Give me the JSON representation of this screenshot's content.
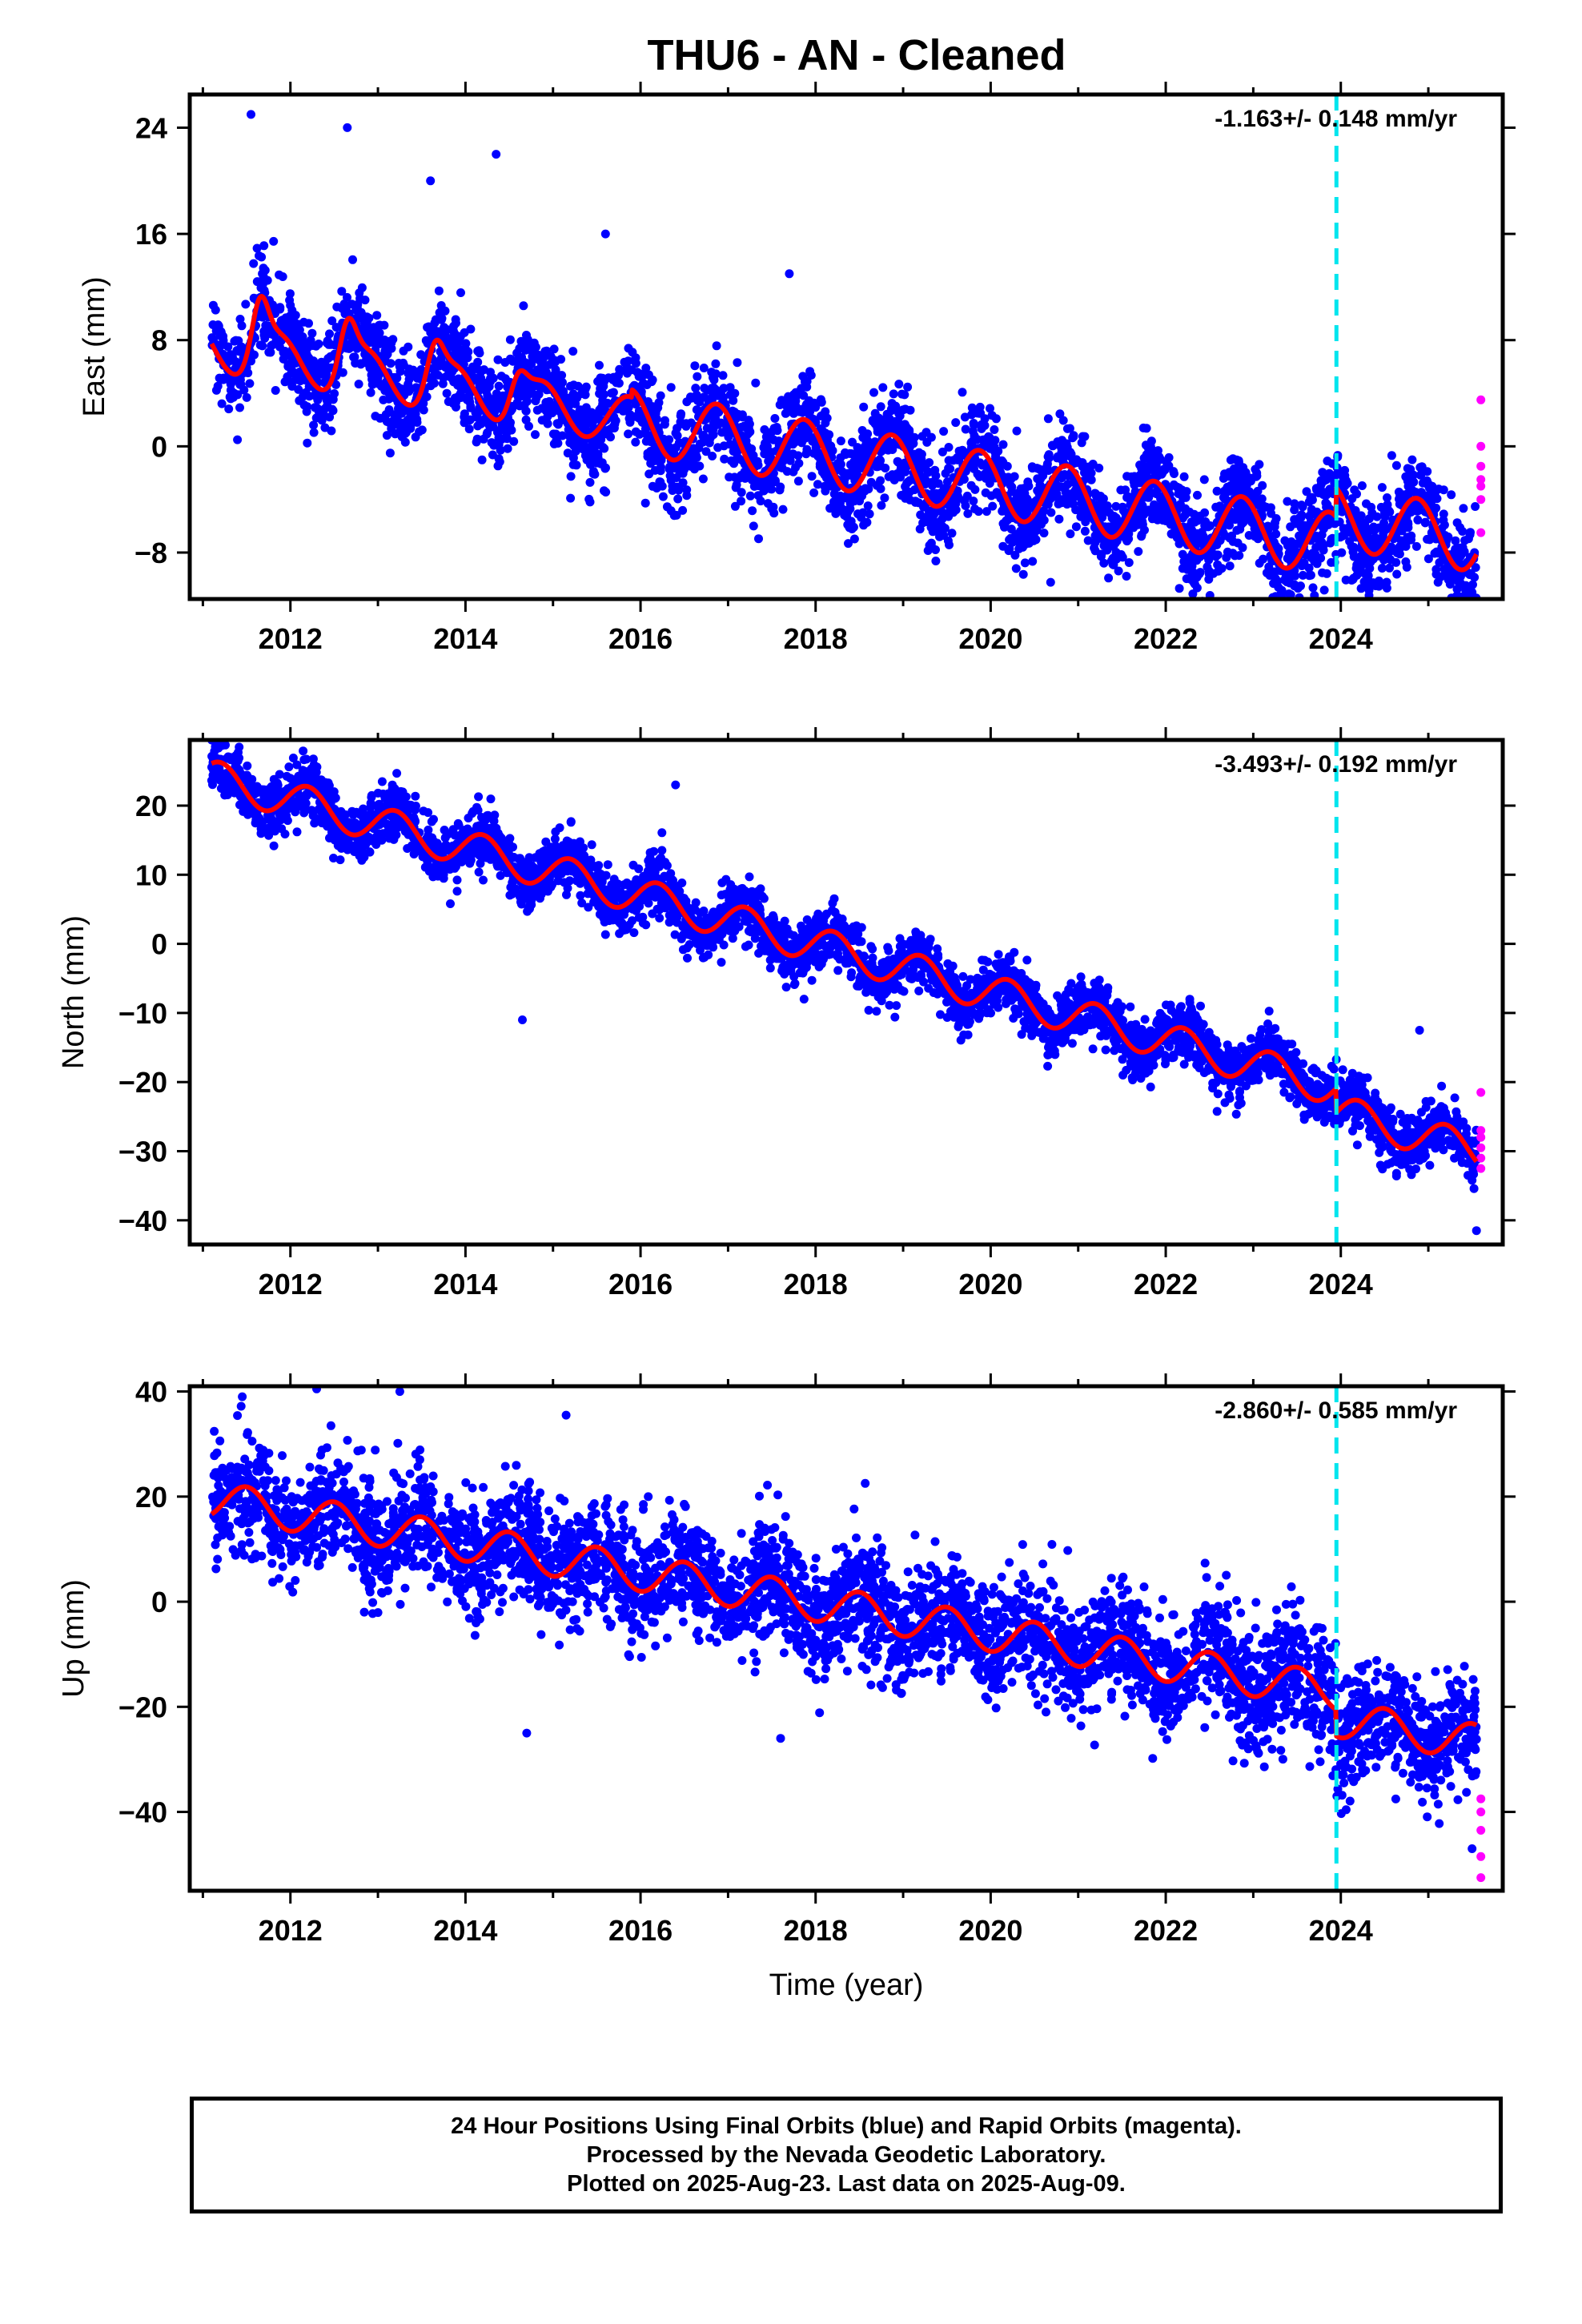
{
  "title": "THU6  - AN - Cleaned",
  "footer": {
    "line1": "24 Hour Positions Using Final Orbits (blue) and Rapid Orbits (magenta).",
    "line2": "Processed by the Nevada Geodetic Laboratory.",
    "line3": "Plotted on 2025-Aug-23. Last data on 2025-Aug-09."
  },
  "colors": {
    "final_orbits": "#0000ff",
    "rapid_orbits": "#ff00ff",
    "model_fit": "#ff0000",
    "reference_epoch": "#00e5ee"
  },
  "chart_data": [
    {
      "type": "scatter",
      "ylabel": "East (mm)",
      "xlabel": "",
      "rate_label": "-1.163+/- 0.148 mm/yr",
      "xlim": [
        2010.85,
        2025.85
      ],
      "ylim": [
        -11.5,
        26.5
      ],
      "xticks": [
        2012,
        2014,
        2016,
        2018,
        2020,
        2022,
        2024
      ],
      "yticks": [
        -8,
        0,
        8,
        16,
        24
      ],
      "reference_line_x": 2023.95,
      "model": {
        "x0": 2011.1,
        "x1": 2025.55,
        "offset": 7.5,
        "rate": -1.163,
        "seasonal": [
          {
            "start": 2011.0,
            "end": 2015.9,
            "amp": 1.8,
            "phase": 0.62
          },
          {
            "start": 2015.9,
            "end": 2025.7,
            "amp": 2.4,
            "phase": 0.62
          }
        ],
        "bumps": [
          {
            "center": 2011.65,
            "width": 0.13,
            "height": 4.0
          },
          {
            "center": 2012.65,
            "width": 0.13,
            "height": 3.5
          },
          {
            "center": 2013.65,
            "width": 0.13,
            "height": 3.0
          },
          {
            "center": 2014.6,
            "width": 0.13,
            "height": 2.3
          }
        ],
        "steps": [
          {
            "at": 2023.95,
            "size": 2.2
          }
        ]
      },
      "scatter": {
        "noise": 1.8,
        "density": 280,
        "outliers": [
          {
            "x": 2011.55,
            "y": 25.0
          },
          {
            "x": 2012.65,
            "y": 24.0
          },
          {
            "x": 2013.6,
            "y": 20.0
          },
          {
            "x": 2014.35,
            "y": 22.0
          },
          {
            "x": 2015.6,
            "y": 16.0
          },
          {
            "x": 2017.7,
            "y": 13.0
          },
          {
            "x": 2025.5,
            "y": -11.0
          }
        ]
      },
      "rapid": {
        "x": 2025.6,
        "values": [
          3.5,
          0.0,
          -1.5,
          -2.5,
          -3.0,
          -4.0,
          -6.5
        ]
      }
    },
    {
      "type": "scatter",
      "ylabel": "North (mm)",
      "xlabel": "",
      "rate_label": "-3.493+/- 0.192 mm/yr",
      "xlim": [
        2010.85,
        2025.85
      ],
      "ylim": [
        -43.5,
        29.5
      ],
      "xticks": [
        2012,
        2014,
        2016,
        2018,
        2020,
        2022,
        2024
      ],
      "yticks": [
        -40,
        -30,
        -20,
        -10,
        0,
        10,
        20
      ],
      "reference_line_x": 2023.95,
      "model": {
        "x0": 2011.1,
        "x1": 2025.55,
        "offset": 24.0,
        "rate": -3.493,
        "seasonal": [
          {
            "start": 2011.0,
            "end": 2025.7,
            "amp": 2.6,
            "phase": 0.95
          }
        ],
        "bumps": [],
        "steps": [
          {
            "at": 2023.95,
            "size": -3.5
          }
        ]
      },
      "scatter": {
        "noise": 2.0,
        "density": 280,
        "outliers": [
          {
            "x": 2014.65,
            "y": -11.0
          },
          {
            "x": 2016.4,
            "y": 23.0
          },
          {
            "x": 2024.9,
            "y": -12.5
          },
          {
            "x": 2025.55,
            "y": -41.5
          }
        ]
      },
      "rapid": {
        "x": 2025.6,
        "values": [
          -21.5,
          -27.0,
          -28.0,
          -29.5,
          -31.0,
          -32.5
        ]
      }
    },
    {
      "type": "scatter",
      "ylabel": "Up (mm)",
      "xlabel": "Time (year)",
      "rate_label": "-2.860+/- 0.585 mm/yr",
      "xlim": [
        2010.85,
        2025.85
      ],
      "ylim": [
        -55,
        41
      ],
      "xticks": [
        2012,
        2014,
        2016,
        2018,
        2020,
        2022,
        2024
      ],
      "yticks": [
        -40,
        -20,
        0,
        20,
        40
      ],
      "reference_line_x": 2023.95,
      "model": {
        "x0": 2011.1,
        "x1": 2025.55,
        "offset": 19.5,
        "rate": -2.86,
        "seasonal": [
          {
            "start": 2011.0,
            "end": 2025.7,
            "amp": 3.5,
            "phase": 0.25
          }
        ],
        "bumps": [],
        "steps": [
          {
            "at": 2023.95,
            "size": -5.0
          }
        ]
      },
      "scatter": {
        "noise": 5.5,
        "density": 280,
        "outliers": [
          {
            "x": 2011.45,
            "y": 39.0
          },
          {
            "x": 2012.3,
            "y": 40.5
          },
          {
            "x": 2013.25,
            "y": 40.0
          },
          {
            "x": 2015.15,
            "y": 35.5
          },
          {
            "x": 2014.7,
            "y": -25.0
          },
          {
            "x": 2017.6,
            "y": -26.0
          },
          {
            "x": 2025.5,
            "y": -47.0
          }
        ]
      },
      "rapid": {
        "x": 2025.6,
        "values": [
          -37.5,
          -40.0,
          -43.5,
          -48.5,
          -52.5
        ]
      }
    }
  ]
}
